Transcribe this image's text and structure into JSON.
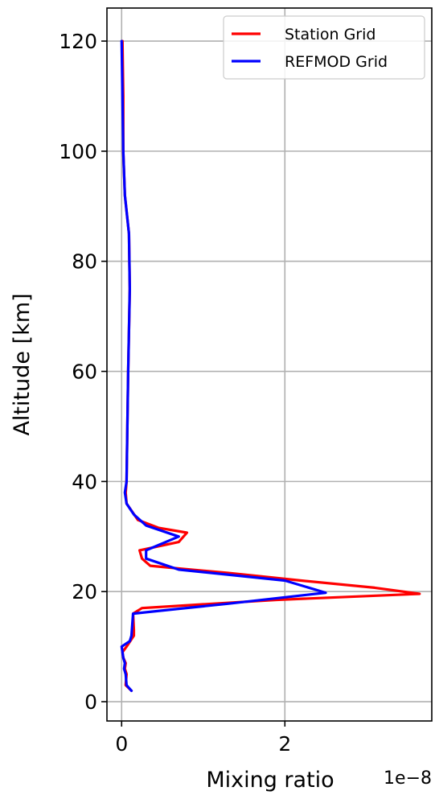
{
  "chart_data": {
    "type": "line",
    "xlabel": "Mixing ratio",
    "ylabel": "Altitude [km]",
    "x_offset_label": "1e−8",
    "x_scale": 1e-08,
    "xlim": [
      -0.18,
      3.8
    ],
    "ylim": [
      -3.5,
      126
    ],
    "xticks": [
      {
        "value": 0,
        "label": "0"
      },
      {
        "value": 2,
        "label": "2"
      }
    ],
    "yticks": [
      {
        "value": 0,
        "label": "0"
      },
      {
        "value": 20,
        "label": "20"
      },
      {
        "value": 40,
        "label": "40"
      },
      {
        "value": 60,
        "label": "60"
      },
      {
        "value": 80,
        "label": "80"
      },
      {
        "value": 100,
        "label": "100"
      },
      {
        "value": 120,
        "label": "120"
      }
    ],
    "grid": true,
    "legend": {
      "placement": "top-right"
    },
    "series": [
      {
        "name": "Station Grid",
        "color": "#ff0000",
        "points": [
          [
            0.12,
            2
          ],
          [
            0.05,
            3
          ],
          [
            0.06,
            5
          ],
          [
            0.04,
            6
          ],
          [
            0.05,
            7
          ],
          [
            0.02,
            8
          ],
          [
            0.01,
            9
          ],
          [
            0.06,
            10
          ],
          [
            0.15,
            12
          ],
          [
            0.15,
            13
          ],
          [
            0.14,
            16
          ],
          [
            0.25,
            17
          ],
          [
            1.0,
            17.7
          ],
          [
            1.9,
            18.5
          ],
          [
            3.65,
            19.6
          ],
          [
            3.1,
            20.7
          ],
          [
            2.2,
            22
          ],
          [
            1.3,
            23.4
          ],
          [
            0.7,
            24.2
          ],
          [
            0.35,
            24.7
          ],
          [
            0.25,
            26
          ],
          [
            0.22,
            27.5
          ],
          [
            0.7,
            29
          ],
          [
            0.8,
            30.7
          ],
          [
            0.45,
            31.6
          ],
          [
            0.2,
            33
          ],
          [
            0.06,
            36
          ],
          [
            0.05,
            38
          ],
          [
            0.06,
            40
          ],
          [
            0.07,
            50
          ],
          [
            0.08,
            60
          ],
          [
            0.1,
            75
          ],
          [
            0.09,
            85
          ],
          [
            0.04,
            92
          ],
          [
            0.02,
            100
          ],
          [
            0.02,
            110
          ],
          [
            0.01,
            120
          ]
        ]
      },
      {
        "name": "REFMOD Grid",
        "color": "#0000ff",
        "points": [
          [
            0.12,
            2
          ],
          [
            0.06,
            3
          ],
          [
            0.05,
            5
          ],
          [
            0.03,
            6
          ],
          [
            0.04,
            7
          ],
          [
            0.02,
            8
          ],
          [
            0.0,
            10
          ],
          [
            0.1,
            11
          ],
          [
            0.12,
            12
          ],
          [
            0.14,
            16
          ],
          [
            0.65,
            16.8
          ],
          [
            1.3,
            17.8
          ],
          [
            2.5,
            19.8
          ],
          [
            2.0,
            22
          ],
          [
            0.7,
            24
          ],
          [
            0.3,
            26
          ],
          [
            0.3,
            27.5
          ],
          [
            0.7,
            30
          ],
          [
            0.3,
            32
          ],
          [
            0.15,
            34
          ],
          [
            0.06,
            36
          ],
          [
            0.04,
            38
          ],
          [
            0.06,
            40
          ],
          [
            0.07,
            50
          ],
          [
            0.08,
            60
          ],
          [
            0.1,
            75
          ],
          [
            0.09,
            85
          ],
          [
            0.04,
            92
          ],
          [
            0.02,
            100
          ],
          [
            0.01,
            110
          ],
          [
            0.0,
            120
          ]
        ]
      }
    ]
  }
}
